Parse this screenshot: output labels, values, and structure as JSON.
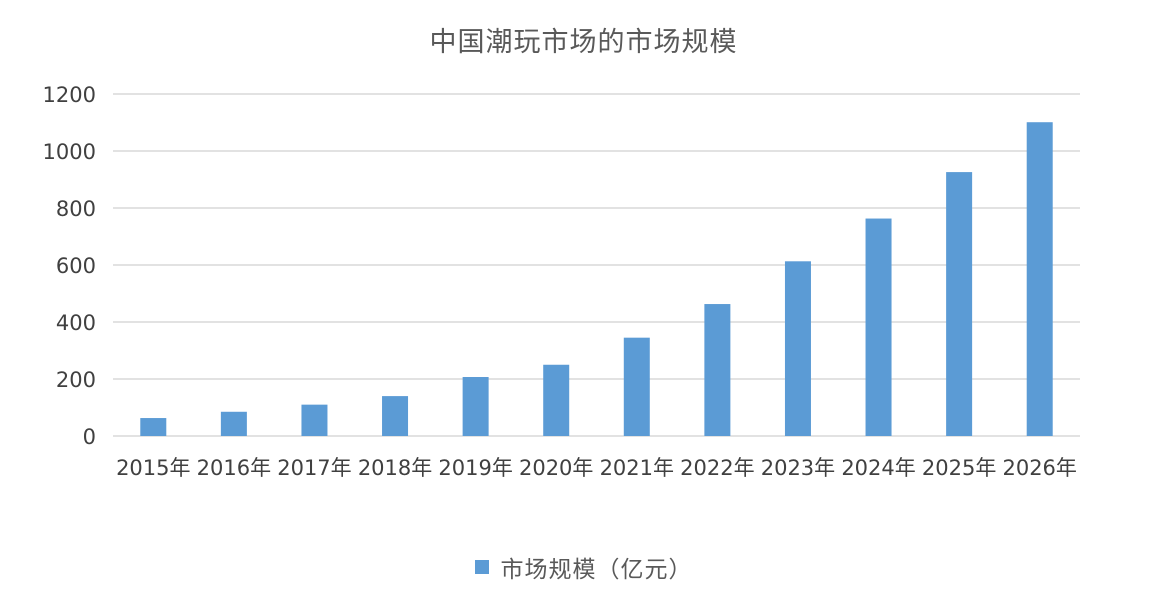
{
  "chart_data": {
    "type": "bar",
    "title": "中国潮玩市场的市场规模",
    "xlabel": "",
    "ylabel": "",
    "categories": [
      "2015年",
      "2016年",
      "2017年",
      "2018年",
      "2019年",
      "2020年",
      "2021年",
      "2022年",
      "2023年",
      "2024年",
      "2025年",
      "2026年"
    ],
    "series": [
      {
        "name": "市场规模（亿元）",
        "values": [
          63,
          85,
          110,
          140,
          207,
          250,
          345,
          463,
          613,
          763,
          926,
          1101
        ],
        "color": "#5b9bd5"
      }
    ],
    "ylim": [
      0,
      1200
    ],
    "yticks": [
      0,
      200,
      400,
      600,
      800,
      1000,
      1200
    ],
    "grid": true,
    "legend": "bottom-center"
  }
}
